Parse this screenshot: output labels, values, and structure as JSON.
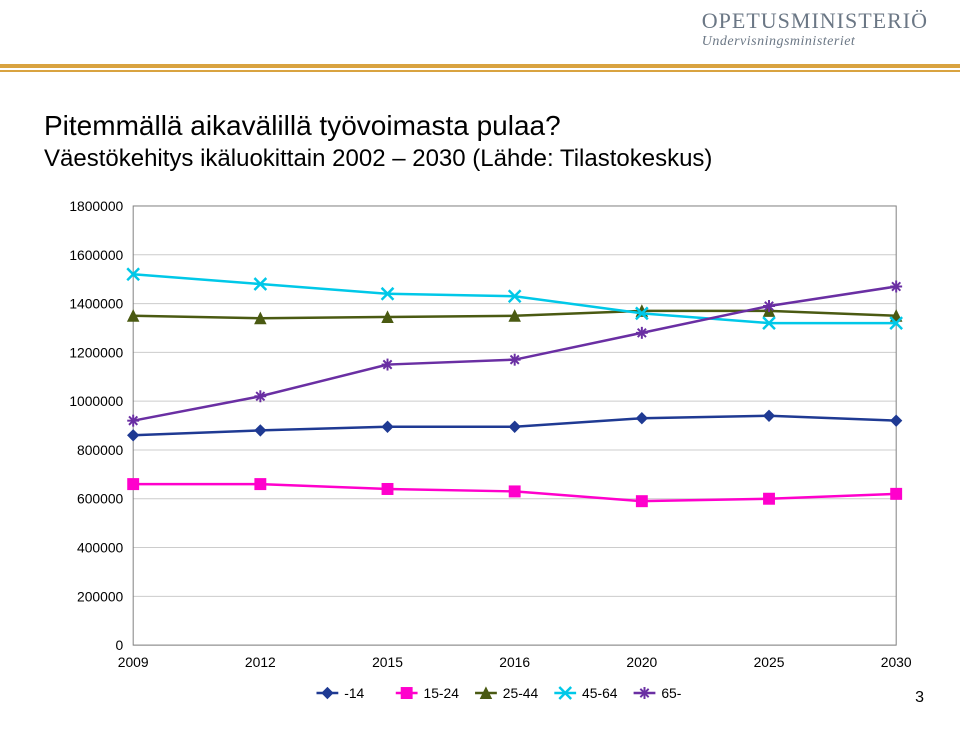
{
  "header": {
    "logo_main": "OPETUSMINISTERIÖ",
    "logo_sub": "Undervisningsministeriet",
    "logo_color": "#6b7785",
    "rule_color": "#d9a340"
  },
  "title": "Pitemmällä aikavälillä työvoimasta pulaa?",
  "subtitle": "Väestökehitys ikäluokittain 2002 – 2030 (Lähde: Tilastokeskus)",
  "page_number": "3",
  "chart": {
    "type": "line",
    "x_categories": [
      "2009",
      "2012",
      "2015",
      "2016",
      "2020",
      "2025",
      "2030"
    ],
    "x_fontsize": 14,
    "y_ticks": [
      0,
      200000,
      400000,
      600000,
      800000,
      1000000,
      1200000,
      1400000,
      1600000,
      1800000
    ],
    "y_fontsize": 14,
    "ylim": [
      0,
      1800000
    ],
    "background": "#ffffff",
    "plot_border_color": "#808080",
    "grid_color": "#cccccc",
    "series": [
      {
        "name": "-14",
        "color": "#1f3a93",
        "marker": "diamond",
        "marker_fill": "#1f3a93",
        "marker_size": 11,
        "line_width": 2.5,
        "values": [
          860000,
          880000,
          895000,
          895000,
          930000,
          940000,
          920000
        ]
      },
      {
        "name": "15-24",
        "color": "#ff00cc",
        "marker": "square",
        "marker_fill": "#ff00cc",
        "marker_size": 11,
        "line_width": 2.5,
        "values": [
          660000,
          660000,
          640000,
          630000,
          590000,
          600000,
          620000
        ]
      },
      {
        "name": "25-44",
        "color": "#4a5a12",
        "marker": "triangle",
        "marker_fill": "#4a5a12",
        "marker_size": 11,
        "line_width": 2.5,
        "values": [
          1350000,
          1340000,
          1345000,
          1350000,
          1370000,
          1370000,
          1350000
        ]
      },
      {
        "name": "45-64",
        "color": "#00c8e8",
        "marker": "x",
        "marker_fill": "#00c8e8",
        "marker_size": 12,
        "line_width": 2.5,
        "values": [
          1520000,
          1480000,
          1440000,
          1430000,
          1360000,
          1320000,
          1320000
        ]
      },
      {
        "name": "65-",
        "color": "#6a2fa3",
        "marker": "star",
        "marker_fill": "#6a2fa3",
        "marker_size": 12,
        "line_width": 2.5,
        "values": [
          920000,
          1020000,
          1150000,
          1170000,
          1280000,
          1390000,
          1470000
        ]
      }
    ],
    "legend": {
      "position": "bottom",
      "fontsize": 14,
      "text_color": "#000000"
    }
  }
}
